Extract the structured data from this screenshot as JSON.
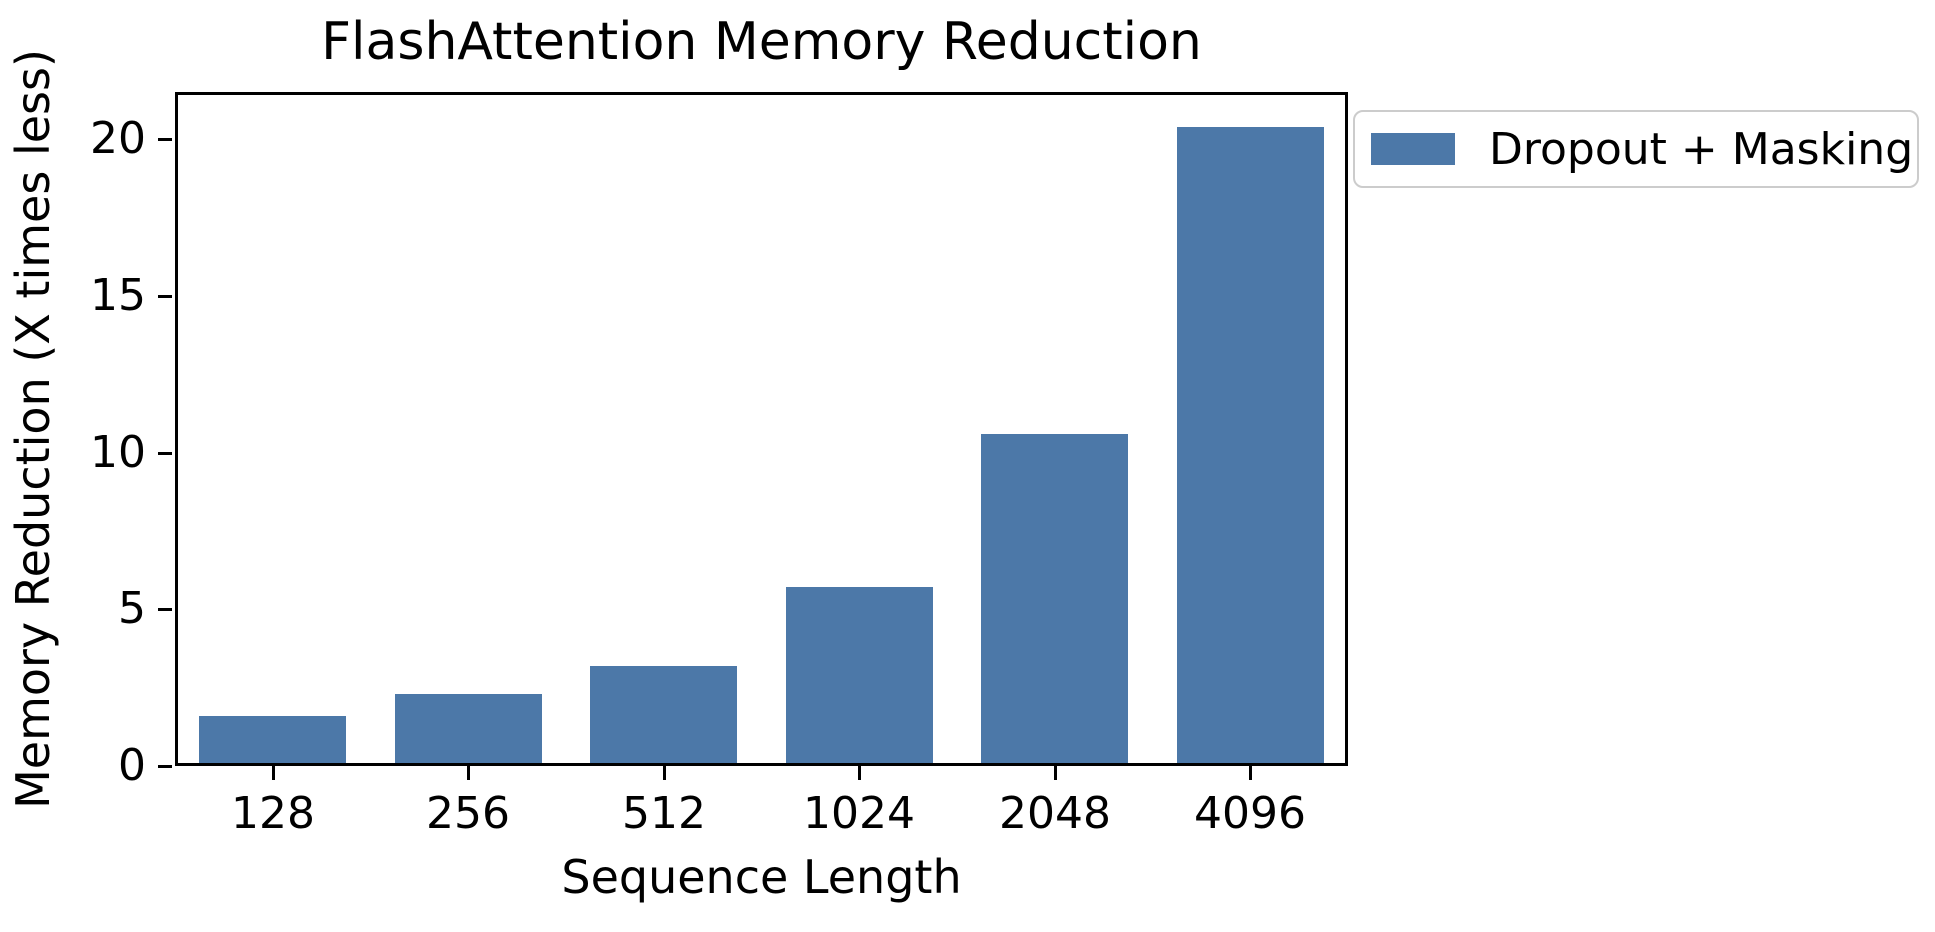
{
  "chart_data": {
    "type": "bar",
    "title": "FlashAttention Memory Reduction",
    "xlabel": "Sequence Length",
    "ylabel": "Memory Reduction (X times less)",
    "categories": [
      "128",
      "256",
      "512",
      "1024",
      "2048",
      "4096"
    ],
    "series": [
      {
        "name": "Dropout + Masking",
        "values": [
          1.5,
          2.2,
          3.1,
          5.6,
          10.5,
          20.3
        ]
      }
    ],
    "yticks": [
      0,
      5,
      10,
      15,
      20
    ],
    "ylim": [
      0,
      21.5
    ],
    "bar_color": "#4C78A8",
    "grid": false,
    "legend": {
      "position": "outside-upper-right",
      "entries": [
        "Dropout + Masking"
      ]
    },
    "background_color": "#ffffff",
    "text_color": "#000000"
  }
}
